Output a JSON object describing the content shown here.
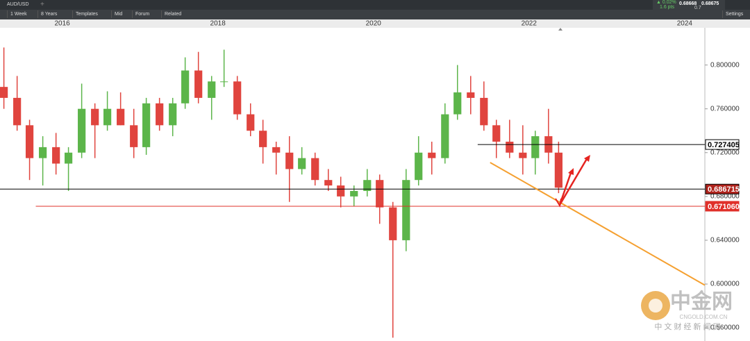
{
  "toolbar": {
    "symbol": "AUD/USD",
    "change": "▲ 0.02%",
    "points": "1.6 pts",
    "bid": "0.68668",
    "spread": "0.7",
    "ask": "0.68675",
    "buttons": [
      "1 Week",
      "8 Years",
      "Templates",
      "Mid",
      "Forum",
      "Related"
    ],
    "settings": "Settings"
  },
  "watermark": {
    "brand": "中金网",
    "site": "CNGOLD.COM.CN",
    "tagline": "中 文 财 经 新 闻 网"
  },
  "chart_data": {
    "type": "candlestick",
    "x": [
      2015.25,
      2015.42,
      2015.58,
      2015.75,
      2015.92,
      2016.08,
      2016.25,
      2016.42,
      2016.58,
      2016.75,
      2016.92,
      2017.08,
      2017.25,
      2017.42,
      2017.58,
      2017.75,
      2017.92,
      2018.08,
      2018.25,
      2018.42,
      2018.58,
      2018.75,
      2018.92,
      2019.08,
      2019.25,
      2019.42,
      2019.58,
      2019.75,
      2019.92,
      2020.08,
      2020.25,
      2020.42,
      2020.58,
      2020.75,
      2020.92,
      2021.08,
      2021.25,
      2021.42,
      2021.58,
      2021.75,
      2021.92,
      2022.08,
      2022.25,
      2022.38
    ],
    "open": [
      0.78,
      0.77,
      0.745,
      0.715,
      0.725,
      0.71,
      0.72,
      0.76,
      0.745,
      0.76,
      0.745,
      0.725,
      0.765,
      0.745,
      0.765,
      0.795,
      0.77,
      0.785,
      0.785,
      0.755,
      0.74,
      0.725,
      0.72,
      0.705,
      0.715,
      0.695,
      0.69,
      0.68,
      0.685,
      0.695,
      0.67,
      0.64,
      0.695,
      0.72,
      0.715,
      0.755,
      0.775,
      0.77,
      0.745,
      0.73,
      0.72,
      0.715,
      0.735,
      0.72
    ],
    "high": [
      0.816,
      0.79,
      0.75,
      0.735,
      0.738,
      0.725,
      0.783,
      0.765,
      0.776,
      0.775,
      0.76,
      0.77,
      0.77,
      0.77,
      0.807,
      0.812,
      0.79,
      0.814,
      0.79,
      0.765,
      0.75,
      0.73,
      0.735,
      0.725,
      0.72,
      0.705,
      0.698,
      0.69,
      0.705,
      0.7,
      0.675,
      0.705,
      0.735,
      0.73,
      0.765,
      0.8,
      0.79,
      0.785,
      0.75,
      0.75,
      0.745,
      0.74,
      0.76,
      0.73
    ],
    "low": [
      0.76,
      0.74,
      0.695,
      0.69,
      0.7,
      0.685,
      0.715,
      0.715,
      0.74,
      0.745,
      0.715,
      0.718,
      0.74,
      0.735,
      0.76,
      0.765,
      0.75,
      0.78,
      0.75,
      0.735,
      0.71,
      0.7,
      0.675,
      0.7,
      0.69,
      0.685,
      0.67,
      0.671,
      0.68,
      0.655,
      0.551,
      0.63,
      0.69,
      0.7,
      0.71,
      0.75,
      0.755,
      0.74,
      0.715,
      0.715,
      0.7,
      0.7,
      0.71,
      0.683
    ],
    "close": [
      0.77,
      0.745,
      0.715,
      0.725,
      0.71,
      0.72,
      0.76,
      0.745,
      0.76,
      0.745,
      0.725,
      0.765,
      0.745,
      0.765,
      0.795,
      0.77,
      0.785,
      0.785,
      0.755,
      0.74,
      0.725,
      0.72,
      0.705,
      0.715,
      0.695,
      0.69,
      0.68,
      0.685,
      0.695,
      0.67,
      0.64,
      0.695,
      0.72,
      0.715,
      0.755,
      0.775,
      0.77,
      0.745,
      0.73,
      0.72,
      0.715,
      0.735,
      0.72,
      0.688
    ],
    "up_color": "#5cb54a",
    "down_color": "#e0443e",
    "xlim": [
      2015.2,
      2024.26
    ],
    "xticks": [
      2016,
      2018,
      2020,
      2022,
      2024
    ],
    "ylim": [
      0.548,
      0.834
    ],
    "yticks": [
      {
        "value": 0.56,
        "label": "0.560000"
      },
      {
        "value": 0.6,
        "label": "0.600000"
      },
      {
        "value": 0.64,
        "label": "0.640000"
      },
      {
        "value": 0.68,
        "label": "0.680000"
      },
      {
        "value": 0.72,
        "label": "0.720000"
      },
      {
        "value": 0.76,
        "label": "0.760000"
      },
      {
        "value": 0.8,
        "label": "0.800000"
      }
    ],
    "hlines": [
      {
        "value": 0.727405,
        "label": "0.727405",
        "from": 2021.34,
        "color": "#000000",
        "box": "#ffffff",
        "text": "#000000"
      },
      {
        "value": 0.686715,
        "label": "0.686715",
        "from": 2015.2,
        "color": "#000000",
        "box": "#b0231c",
        "text": "#ffffff"
      },
      {
        "value": 0.67106,
        "label": "0.671060",
        "from": 2015.66,
        "color": "#e0302a",
        "box": "#e0302a",
        "text": "#ffffff"
      }
    ],
    "trendline": {
      "x": [
        2021.5,
        2024.26
      ],
      "y": [
        0.711,
        0.599
      ],
      "color": "#f5a030"
    }
  }
}
